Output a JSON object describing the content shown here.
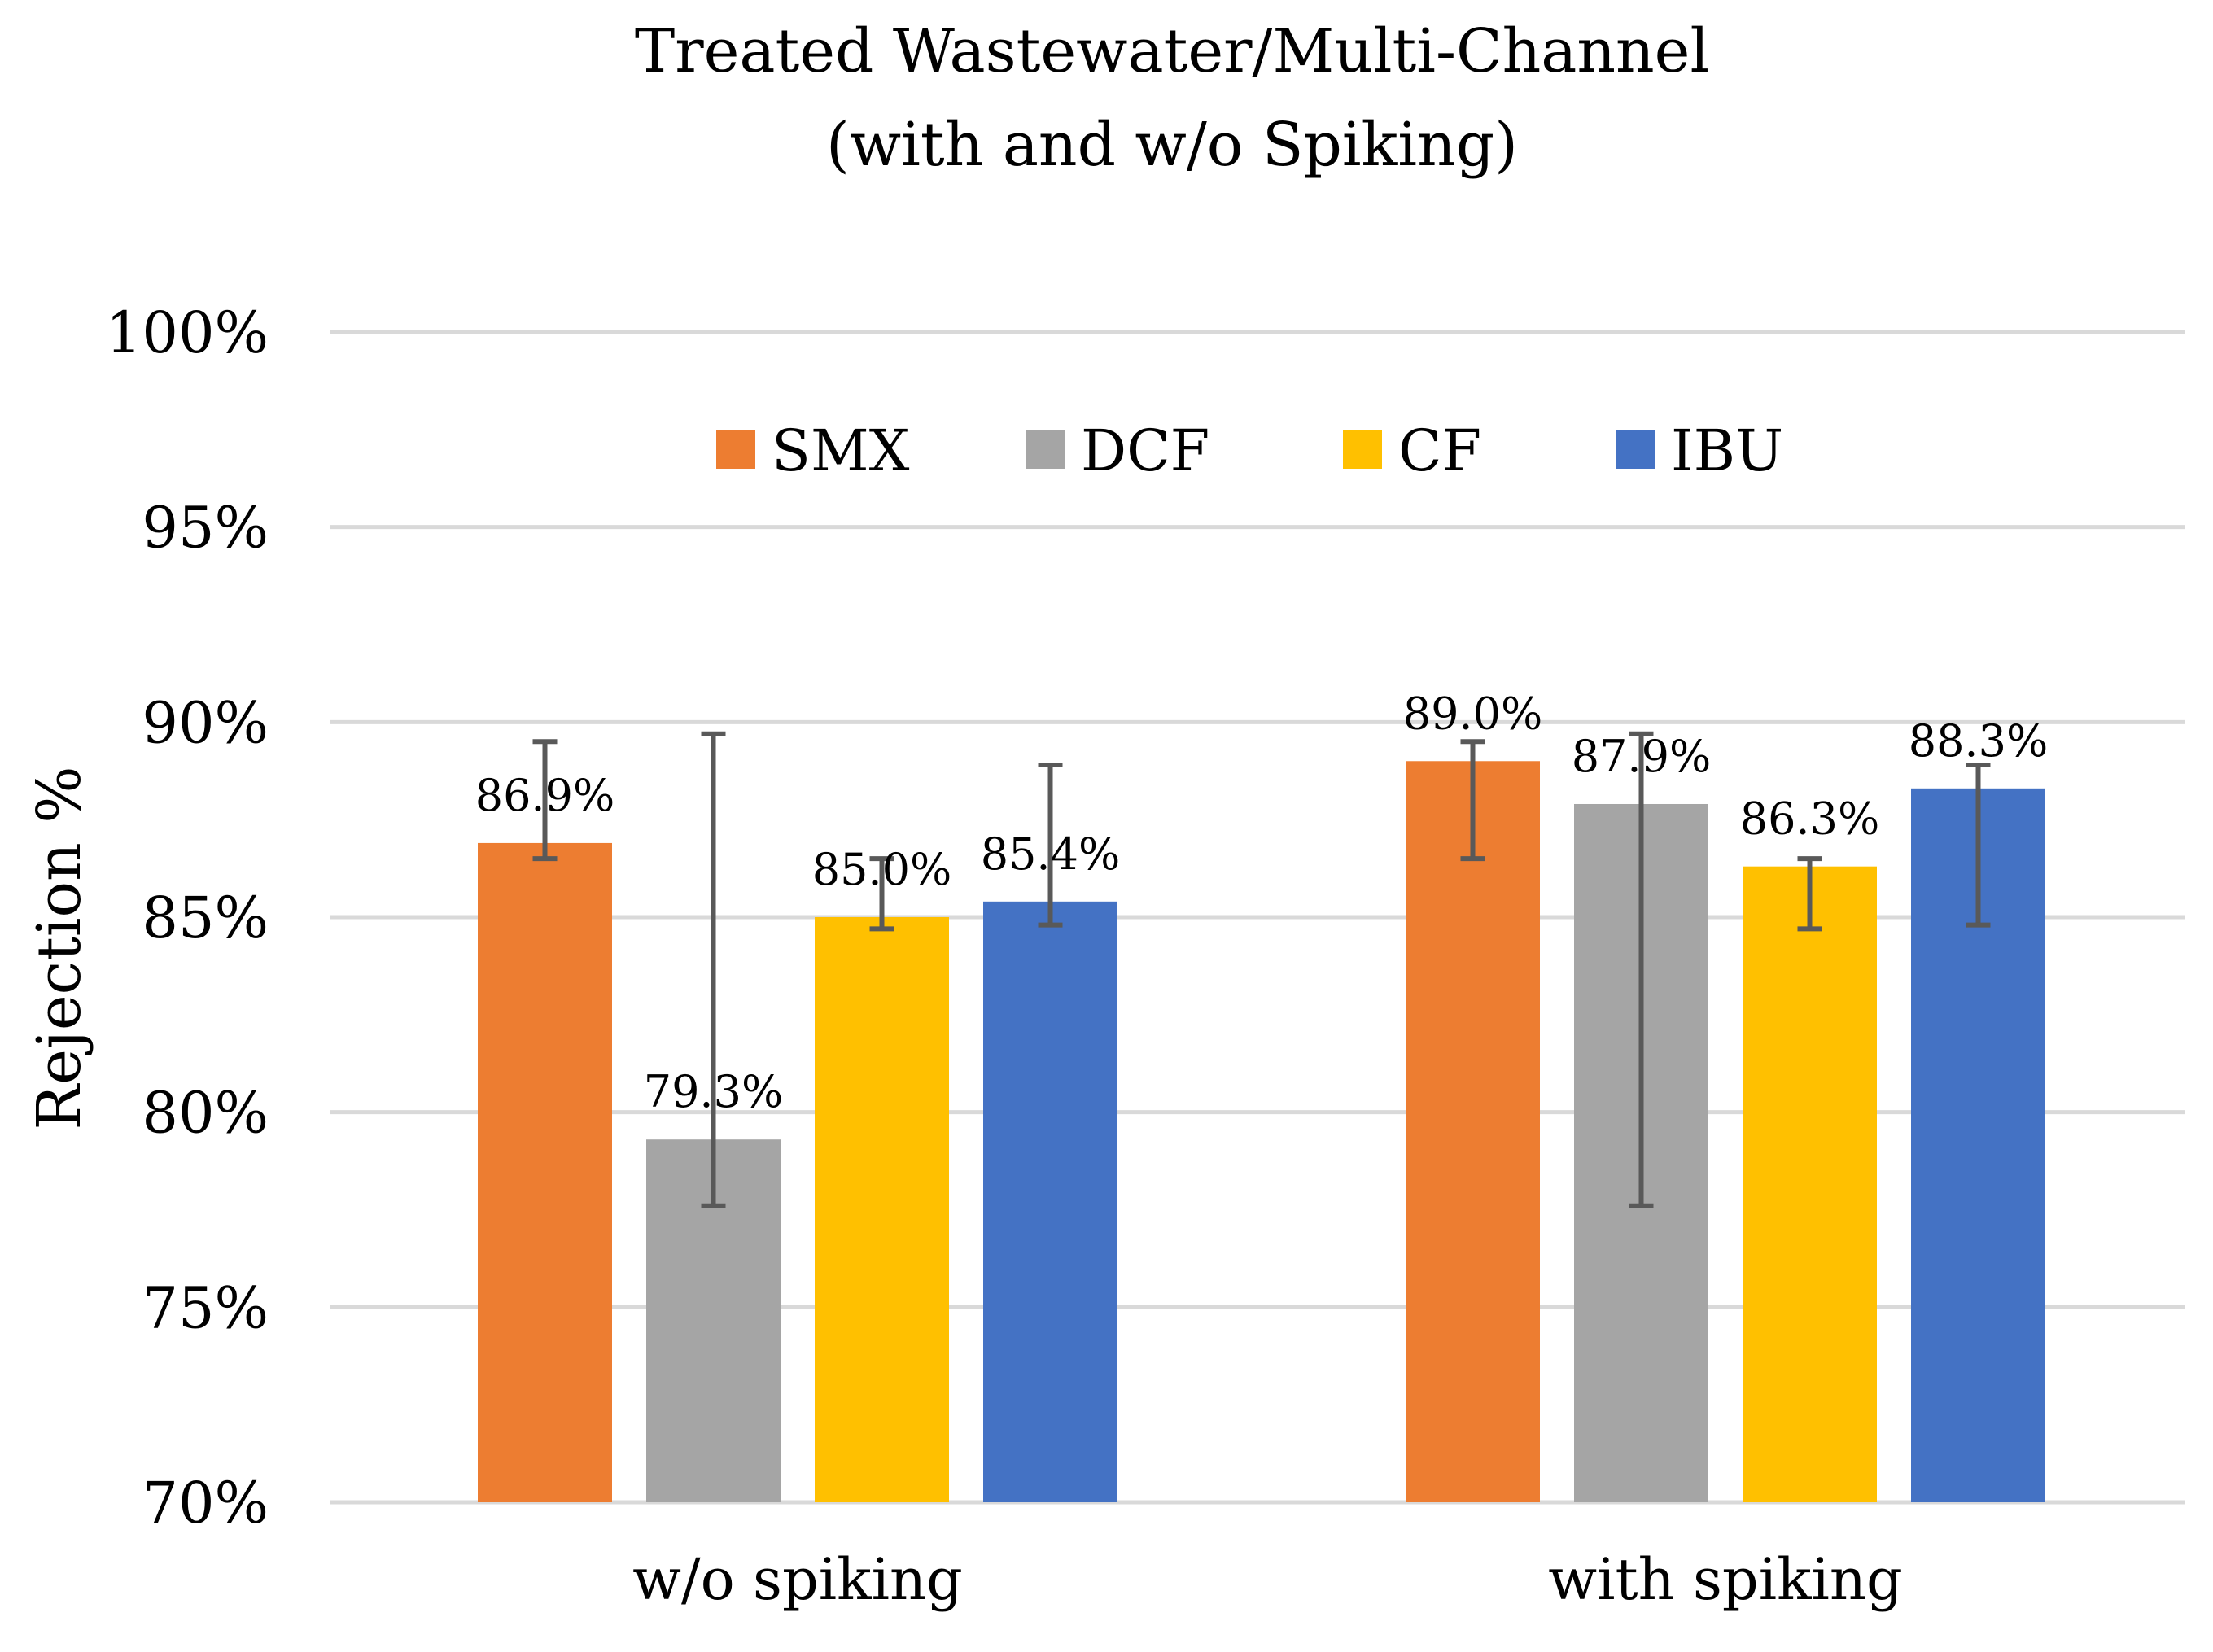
{
  "chart_data": {
    "type": "bar",
    "title_lines": [
      "Treated Wastewater/Multi-Channel",
      "(with and w/o Spiking)"
    ],
    "xlabel": "",
    "ylabel": "Rejection %",
    "ylim": [
      0.7,
      1.0
    ],
    "ytick_values": [
      0.7,
      0.75,
      0.8,
      0.85,
      0.9,
      0.95,
      1.0
    ],
    "ytick_labels": [
      "70%",
      "75%",
      "80%",
      "85%",
      "90%",
      "95%",
      "100%"
    ],
    "grid": true,
    "legend_position": "top-center",
    "categories": [
      "w/o spiking",
      "with spiking"
    ],
    "series": [
      {
        "name": "SMX",
        "color": "#ED7D31",
        "values": [
          0.869,
          0.89
        ],
        "labels": [
          "86.9%",
          "89.0%"
        ],
        "error_low": [
          0.865,
          0.865
        ],
        "error_high": [
          0.895,
          0.895
        ]
      },
      {
        "name": "DCF",
        "color": "#A5A5A5",
        "values": [
          0.793,
          0.879
        ],
        "labels": [
          "79.3%",
          "87.9%"
        ],
        "error_low": [
          0.776,
          0.776
        ],
        "error_high": [
          0.897,
          0.897
        ]
      },
      {
        "name": "CF",
        "color": "#FFC000",
        "values": [
          0.85,
          0.863
        ],
        "labels": [
          "85.0%",
          "86.3%"
        ],
        "error_low": [
          0.847,
          0.847
        ],
        "error_high": [
          0.865,
          0.865
        ]
      },
      {
        "name": "IBU",
        "color": "#4472C4",
        "values": [
          0.854,
          0.883
        ],
        "labels": [
          "85.4%",
          "88.3%"
        ],
        "error_low": [
          0.848,
          0.848
        ],
        "error_high": [
          0.889,
          0.889
        ]
      }
    ]
  }
}
